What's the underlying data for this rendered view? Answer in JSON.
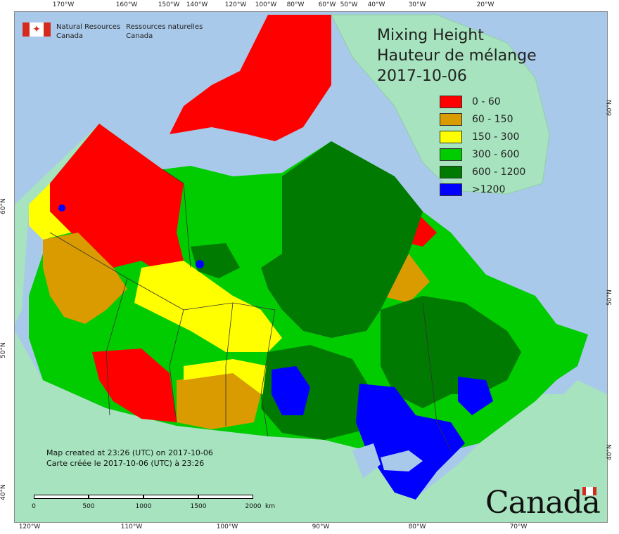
{
  "org": {
    "name_en": "Natural Resources Canada",
    "name_fr": "Ressources naturelles Canada",
    "line1_en": "Natural Resources",
    "line2_en": "Canada",
    "line1_fr": "Ressources naturelles",
    "line2_fr": "Canada"
  },
  "title": {
    "line1": "Mixing Height",
    "line2": "Hauteur de mélange",
    "date": "2017-10-06"
  },
  "legend": [
    {
      "label": "0 - 60",
      "color": "#ff0000"
    },
    {
      "label": "60 - 150",
      "color": "#d99b00"
    },
    {
      "label": "150 - 300",
      "color": "#ffff00"
    },
    {
      "label": "300 - 600",
      "color": "#00cc00"
    },
    {
      "label": "600 - 1200",
      "color": "#007a00"
    },
    {
      "label": ">1200",
      "color": "#0000ff"
    }
  ],
  "notes": {
    "created_en": "Map created at 23:26 (UTC) on 2017-10-06",
    "created_fr": "Carte créée le 2017-10-06 (UTC) à 23:26"
  },
  "scalebar": {
    "labels": [
      "0",
      "500",
      "1000",
      "1500",
      "2000"
    ],
    "unit": "km"
  },
  "ticks": {
    "top": [
      "170°W",
      "160°W",
      "150°W",
      "140°W",
      "120°W",
      "100°W",
      "80°W",
      "60°W",
      "50°W",
      "40°W",
      "30°W",
      "20°W"
    ],
    "bottom": [
      "120°W",
      "110°W",
      "100°W",
      "90°W",
      "80°W",
      "70°W"
    ],
    "left": [
      "60°N",
      "50°N",
      "40°N"
    ],
    "right": [
      "60°N",
      "50°N",
      "40°N"
    ]
  },
  "wordmark": "Canada",
  "colors": {
    "ocean": "#a9c9ea",
    "land_other": "#a6e3be"
  }
}
